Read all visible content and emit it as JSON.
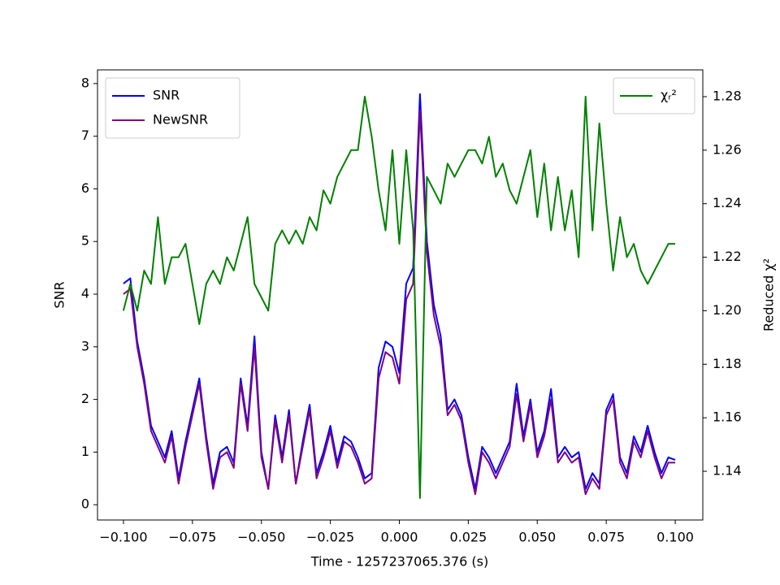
{
  "chart_data": {
    "type": "line",
    "xlabel": "Time - 1257237065.376 (s)",
    "ylabel": "SNR",
    "y2label": "Reduced χ²",
    "legend": "upper left",
    "legend2": "upper right",
    "x": [
      -0.1,
      -0.0975,
      -0.095,
      -0.0925,
      -0.09,
      -0.0875,
      -0.085,
      -0.0825,
      -0.08,
      -0.0775,
      -0.075,
      -0.0725,
      -0.07,
      -0.0675,
      -0.065,
      -0.0625,
      -0.06,
      -0.0575,
      -0.055,
      -0.0525,
      -0.05,
      -0.0475,
      -0.045,
      -0.0425,
      -0.04,
      -0.0375,
      -0.035,
      -0.0325,
      -0.03,
      -0.0275,
      -0.025,
      -0.0225,
      -0.02,
      -0.0175,
      -0.015,
      -0.0125,
      -0.01,
      -0.0075,
      -0.005,
      -0.0025,
      0,
      0.0025,
      0.005,
      0.0075,
      0.01,
      0.0125,
      0.015,
      0.0175,
      0.02,
      0.0225,
      0.025,
      0.0275,
      0.03,
      0.0325,
      0.035,
      0.0375,
      0.04,
      0.0425,
      0.045,
      0.0475,
      0.05,
      0.0525,
      0.055,
      0.0575,
      0.06,
      0.0625,
      0.065,
      0.0675,
      0.07,
      0.0725,
      0.075,
      0.0775,
      0.08,
      0.0825,
      0.085,
      0.0875,
      0.09,
      0.0925,
      0.095,
      0.0975,
      0.1
    ],
    "series": [
      {
        "name": "SNR",
        "color": "#0000ff",
        "values": [
          4.2,
          4.3,
          3.1,
          2.4,
          1.5,
          1.2,
          0.9,
          1.4,
          0.5,
          1.2,
          1.8,
          2.4,
          1.3,
          0.4,
          1.0,
          1.1,
          0.8,
          2.4,
          1.5,
          3.2,
          1.0,
          0.3,
          1.7,
          0.9,
          1.8,
          0.4,
          1.2,
          1.9,
          0.6,
          1.0,
          1.5,
          0.8,
          1.3,
          1.2,
          0.9,
          0.5,
          0.6,
          2.6,
          3.1,
          3.0,
          2.5,
          4.2,
          4.5,
          7.8,
          5.0,
          3.8,
          3.2,
          1.8,
          2.0,
          1.7,
          0.9,
          0.3,
          1.1,
          0.9,
          0.6,
          0.9,
          1.2,
          2.3,
          1.3,
          2.0,
          1.0,
          1.4,
          2.2,
          0.9,
          1.1,
          0.9,
          1.0,
          0.3,
          0.6,
          0.4,
          1.8,
          2.1,
          0.9,
          0.6,
          1.3,
          1.0,
          1.5,
          1.0,
          0.6,
          0.9,
          0.85
        ]
      },
      {
        "name": "NewSNR",
        "color": "#800080",
        "values": [
          4.0,
          4.1,
          3.0,
          2.3,
          1.4,
          1.1,
          0.8,
          1.3,
          0.4,
          1.1,
          1.7,
          2.3,
          1.2,
          0.3,
          0.9,
          1.0,
          0.7,
          2.3,
          1.4,
          3.0,
          0.9,
          0.3,
          1.6,
          0.8,
          1.7,
          0.4,
          1.1,
          1.8,
          0.5,
          0.9,
          1.4,
          0.7,
          1.2,
          1.1,
          0.8,
          0.4,
          0.5,
          2.4,
          2.9,
          2.8,
          2.3,
          3.9,
          4.2,
          7.5,
          4.8,
          3.6,
          3.0,
          1.7,
          1.9,
          1.6,
          0.8,
          0.2,
          1.0,
          0.8,
          0.5,
          0.8,
          1.1,
          2.1,
          1.2,
          1.9,
          0.9,
          1.3,
          2.0,
          0.8,
          1.0,
          0.8,
          0.9,
          0.2,
          0.5,
          0.3,
          1.7,
          2.0,
          0.8,
          0.5,
          1.2,
          0.9,
          1.4,
          0.9,
          0.5,
          0.8,
          0.8
        ]
      },
      {
        "name": "χᵣ²",
        "color": "#008000",
        "axis": "y2",
        "values": [
          1.2,
          1.21,
          1.2,
          1.215,
          1.21,
          1.235,
          1.21,
          1.22,
          1.22,
          1.225,
          1.21,
          1.195,
          1.21,
          1.215,
          1.21,
          1.22,
          1.215,
          1.225,
          1.235,
          1.21,
          1.205,
          1.2,
          1.225,
          1.23,
          1.225,
          1.23,
          1.225,
          1.235,
          1.23,
          1.245,
          1.24,
          1.25,
          1.255,
          1.26,
          1.26,
          1.28,
          1.265,
          1.245,
          1.23,
          1.26,
          1.225,
          1.26,
          1.23,
          1.13,
          1.25,
          1.245,
          1.24,
          1.255,
          1.25,
          1.255,
          1.26,
          1.26,
          1.255,
          1.265,
          1.25,
          1.255,
          1.245,
          1.24,
          1.25,
          1.26,
          1.235,
          1.255,
          1.23,
          1.25,
          1.23,
          1.245,
          1.22,
          1.28,
          1.23,
          1.27,
          1.24,
          1.215,
          1.235,
          1.22,
          1.225,
          1.215,
          1.21,
          1.215,
          1.22,
          1.225,
          1.225
        ]
      }
    ],
    "xlim": [
      -0.1094,
      0.11
    ],
    "xticks": [
      {
        "value": -0.1,
        "label": "−0.100"
      },
      {
        "value": -0.075,
        "label": "−0.075"
      },
      {
        "value": -0.05,
        "label": "−0.050"
      },
      {
        "value": -0.025,
        "label": "−0.025"
      },
      {
        "value": 0,
        "label": "0.000"
      },
      {
        "value": 0.025,
        "label": "0.025"
      },
      {
        "value": 0.05,
        "label": "0.050"
      },
      {
        "value": 0.075,
        "label": "0.075"
      },
      {
        "value": 0.1,
        "label": "0.100"
      }
    ],
    "ylim": [
      -0.29,
      8.26
    ],
    "yticks": [
      0,
      1,
      2,
      3,
      4,
      5,
      6,
      7,
      8
    ],
    "y2lim": [
      1.1218,
      1.29
    ],
    "y2ticks": [
      1.14,
      1.16,
      1.18,
      {
        "value": 1.2,
        "label": "1.20"
      },
      1.22,
      1.24,
      1.26,
      1.28
    ]
  }
}
